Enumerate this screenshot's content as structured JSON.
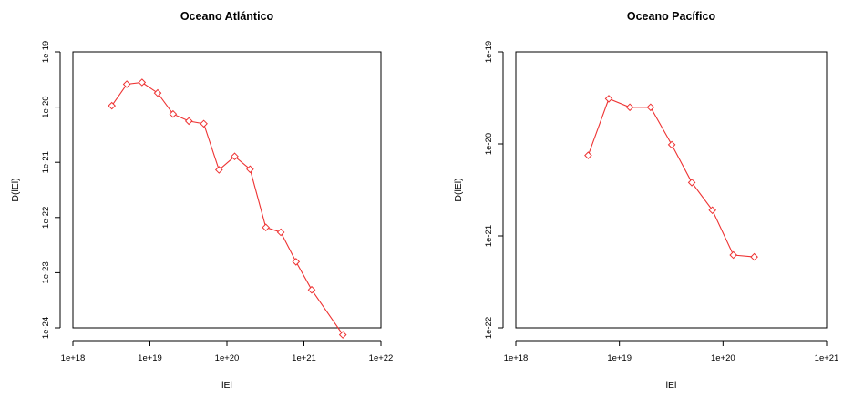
{
  "chart_data": [
    {
      "type": "line",
      "title": "Oceano Atlántico",
      "xlabel": "lEl",
      "ylabel": "D(lEl)",
      "x_scale": "log",
      "y_scale": "log",
      "xlim": [
        1e+18,
        1e+22
      ],
      "ylim": [
        1e-24,
        1e-19
      ],
      "x_ticks": [
        1e+18,
        1e+19,
        1e+20,
        1e+21,
        1e+22
      ],
      "x_tick_labels": [
        "1e+18",
        "1e+19",
        "1e+20",
        "1e+21",
        "1e+22"
      ],
      "y_ticks": [
        1e-24,
        1e-23,
        1e-22,
        1e-21,
        1e-20,
        1e-19
      ],
      "y_tick_labels": [
        "1e-24",
        "1e-23",
        "1e-22",
        "1e-21",
        "1e-20",
        "1e-19"
      ],
      "series": [
        {
          "color": "#ee3333",
          "marker": "diamond",
          "x": [
            3.2e+18,
            5e+18,
            7.9e+18,
            1.26e+19,
            2e+19,
            3.2e+19,
            5e+19,
            7.9e+19,
            1.26e+20,
            2e+20,
            3.2e+20,
            5e+20,
            7.9e+20,
            1.26e+21,
            3.2e+21
          ],
          "y": [
            1.06e-20,
            2.6e-20,
            2.8e-20,
            1.8e-20,
            7.5e-21,
            5.6e-21,
            5e-21,
            7.3e-22,
            1.28e-21,
            7.5e-22,
            6.6e-23,
            5.4e-23,
            1.58e-23,
            4.9e-24,
            7.5e-25
          ]
        }
      ],
      "grid": false,
      "legend": "none"
    },
    {
      "type": "line",
      "title": "Oceano Pacífico",
      "xlabel": "lEl",
      "ylabel": "D(lEl)",
      "x_scale": "log",
      "y_scale": "log",
      "xlim": [
        1e+18,
        1e+21
      ],
      "ylim": [
        1e-22,
        1e-19
      ],
      "x_ticks": [
        1e+18,
        1e+19,
        1e+20,
        1e+21
      ],
      "x_tick_labels": [
        "1e+18",
        "1e+19",
        "1e+20",
        "1e+21"
      ],
      "y_ticks": [
        1e-22,
        1e-21,
        1e-20,
        1e-19
      ],
      "y_tick_labels": [
        "1e-22",
        "1e-21",
        "1e-20",
        "1e-19"
      ],
      "series": [
        {
          "color": "#ee3333",
          "marker": "diamond",
          "x": [
            5e+18,
            7.9e+18,
            1.26e+19,
            2e+19,
            3.2e+19,
            5e+19,
            7.9e+19,
            1.26e+20,
            2e+20
          ],
          "y": [
            7.5e-21,
            3.1e-20,
            2.5e-20,
            2.5e-20,
            9.8e-21,
            3.8e-21,
            1.9e-21,
            6.2e-22,
            5.9e-22
          ]
        }
      ],
      "grid": false,
      "legend": "none"
    }
  ]
}
